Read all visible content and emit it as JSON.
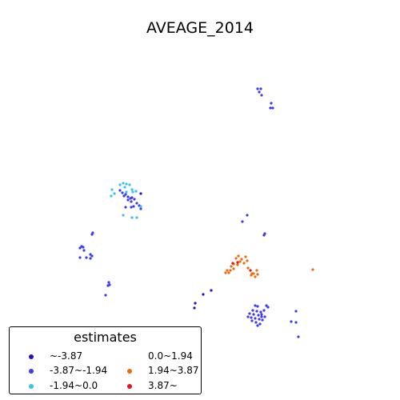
{
  "title": "AVEAGE_2014",
  "legend": {
    "title": "estimates",
    "placement": "lower-left",
    "entries": [
      {
        "label": "~-3.87",
        "color": "#2b0fbf"
      },
      {
        "label": "-3.87~-1.94",
        "color": "#3a3af0"
      },
      {
        "label": "-1.94~0.0",
        "color": "#35c4ee"
      },
      {
        "label": "0.0~1.94",
        "color": "#ffffff"
      },
      {
        "label": "1.94~3.87",
        "color": "#f06a0a"
      },
      {
        "label": "3.87~",
        "color": "#e8121c"
      }
    ]
  },
  "chart_data": {
    "type": "scatter",
    "title": "AVEAGE_2014",
    "grid": false,
    "axes_visible": false,
    "legend": "lower-left",
    "series": [
      {
        "name": "~-3.87",
        "color": "#2b0fbf",
        "points": [
          [
            176,
            242
          ],
          [
            254,
            368
          ],
          [
            264,
            363
          ],
          [
            244,
            379
          ],
          [
            243,
            385
          ]
        ]
      },
      {
        "name": "-3.87~-1.94",
        "color": "#3a3af0",
        "points": [
          [
            322,
            111
          ],
          [
            326,
            111
          ],
          [
            324,
            115
          ],
          [
            327,
            119
          ],
          [
            339,
            129
          ],
          [
            338,
            135
          ],
          [
            341,
            135
          ],
          [
            150,
            238
          ],
          [
            157,
            243
          ],
          [
            160,
            246
          ],
          [
            163,
            248
          ],
          [
            165,
            247
          ],
          [
            160,
            250
          ],
          [
            168,
            249
          ],
          [
            164,
            252
          ],
          [
            171,
            254
          ],
          [
            174,
            257
          ],
          [
            167,
            258
          ],
          [
            157,
            259
          ],
          [
            164,
            259
          ],
          [
            176,
            261
          ],
          [
            155,
            245
          ],
          [
            153,
            241
          ],
          [
            309,
            269
          ],
          [
            303,
            277
          ],
          [
            331,
            292
          ],
          [
            330,
            294
          ],
          [
            102,
            308
          ],
          [
            104,
            309
          ],
          [
            100,
            310
          ],
          [
            105,
            313
          ],
          [
            116,
            291
          ],
          [
            115,
            293
          ],
          [
            113,
            318
          ],
          [
            115,
            320
          ],
          [
            113,
            323
          ],
          [
            108,
            322
          ],
          [
            100,
            322
          ],
          [
            136,
            353
          ],
          [
            135,
            357
          ],
          [
            137,
            356
          ],
          [
            132,
            369
          ],
          [
            319,
            382
          ],
          [
            322,
            383
          ],
          [
            333,
            382
          ],
          [
            335,
            384
          ],
          [
            316,
            388
          ],
          [
            321,
            389
          ],
          [
            326,
            390
          ],
          [
            330,
            388
          ],
          [
            312,
            392
          ],
          [
            317,
            393
          ],
          [
            323,
            394
          ],
          [
            327,
            393
          ],
          [
            331,
            396
          ],
          [
            310,
            396
          ],
          [
            314,
            397
          ],
          [
            319,
            398
          ],
          [
            324,
            399
          ],
          [
            328,
            400
          ],
          [
            315,
            401
          ],
          [
            320,
            403
          ],
          [
            325,
            405
          ],
          [
            370,
            389
          ],
          [
            364,
            402
          ],
          [
            370,
            403
          ],
          [
            373,
            421
          ],
          [
            322,
            407
          ],
          [
            327,
            396
          ]
        ]
      },
      {
        "name": "-1.94~0.0",
        "color": "#35c4ee",
        "points": [
          [
            154,
            229
          ],
          [
            158,
            230
          ],
          [
            162,
            231
          ],
          [
            156,
            234
          ],
          [
            165,
            237
          ],
          [
            170,
            239
          ],
          [
            166,
            240
          ],
          [
            158,
            240
          ],
          [
            140,
            237
          ],
          [
            143,
            242
          ],
          [
            139,
            245
          ],
          [
            171,
            272
          ],
          [
            165,
            272
          ],
          [
            154,
            269
          ],
          [
            176,
            258
          ],
          [
            150,
            231
          ]
        ]
      },
      {
        "name": "1.94~3.87",
        "color": "#f06a0a",
        "points": [
          [
            298,
            320
          ],
          [
            307,
            321
          ],
          [
            295,
            323
          ],
          [
            302,
            324
          ],
          [
            309,
            326
          ],
          [
            300,
            327
          ],
          [
            305,
            329
          ],
          [
            292,
            330
          ],
          [
            289,
            333
          ],
          [
            292,
            336
          ],
          [
            288,
            338
          ],
          [
            284,
            338
          ],
          [
            282,
            341
          ],
          [
            286,
            341
          ],
          [
            321,
            338
          ],
          [
            317,
            342
          ],
          [
            322,
            343
          ],
          [
            314,
            344
          ],
          [
            319,
            346
          ],
          [
            315,
            342
          ],
          [
            391,
            337
          ],
          [
            297,
            331
          ],
          [
            310,
            335
          ]
        ]
      },
      {
        "name": "3.87~",
        "color": "#e8121c",
        "points": [
          [
            291,
            329
          ],
          [
            297,
            328
          ],
          [
            313,
            338
          ]
        ]
      }
    ]
  }
}
